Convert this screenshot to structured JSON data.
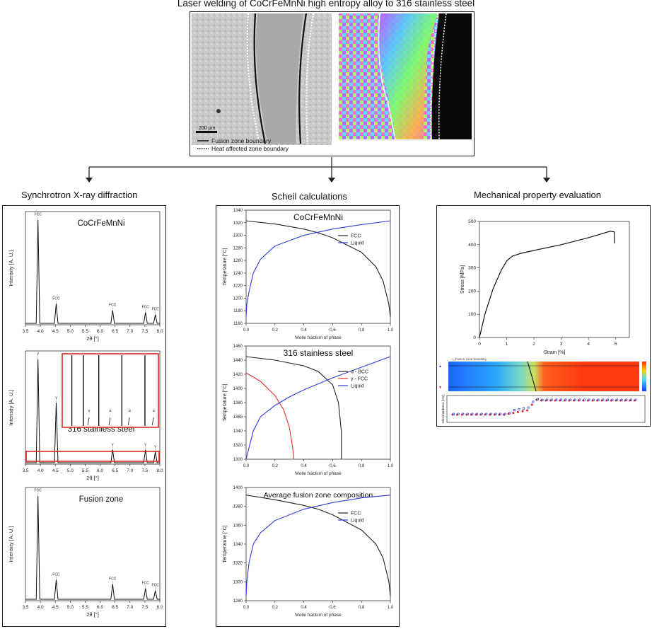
{
  "title": "Laser welding of CoCrFeMnNi high entropy alloy to 316 stainless steel",
  "micro": {
    "scale_label": "200 µm",
    "legend": [
      "Fusion zone boundary",
      "Heat affected zone boundary"
    ]
  },
  "sections": {
    "xrd": "Synchrotron X-ray diffraction",
    "scheil": "Scheil calculations",
    "mech": "Mechanical property evaluation"
  },
  "xrd": {
    "xlabel": "2θ [°]",
    "ylabel": "Intensity [A. U.]",
    "xticks": [
      "3.5",
      "4.0",
      "4.5",
      "5.0",
      "5.5",
      "6.0",
      "6.5",
      "7.0",
      "7.5",
      "8.0"
    ],
    "panels": [
      {
        "title": "CoCrFeMnNi",
        "peaks": [
          {
            "x": 3.92,
            "h": 0.95,
            "label": "FCC"
          },
          {
            "x": 4.53,
            "h": 0.18,
            "label": "FCC"
          },
          {
            "x": 6.42,
            "h": 0.12,
            "label": "FCC"
          },
          {
            "x": 7.52,
            "h": 0.1,
            "label": "FCC"
          },
          {
            "x": 7.85,
            "h": 0.08,
            "label": "FCC"
          }
        ]
      },
      {
        "title": "316 stainless steel",
        "peaks": [
          {
            "x": 3.92,
            "h": 0.95,
            "label": "γ"
          },
          {
            "x": 4.53,
            "h": 0.55,
            "label": "γ"
          },
          {
            "x": 6.42,
            "h": 0.12,
            "label": "γ"
          },
          {
            "x": 7.52,
            "h": 0.12,
            "label": "γ"
          },
          {
            "x": 7.85,
            "h": 0.1,
            "label": "γ"
          }
        ]
      },
      {
        "title": "Fusion zone",
        "peaks": [
          {
            "x": 3.92,
            "h": 0.95,
            "label": "FCC"
          },
          {
            "x": 4.53,
            "h": 0.18,
            "label": "FCC"
          },
          {
            "x": 6.42,
            "h": 0.14,
            "label": "FCC"
          },
          {
            "x": 7.52,
            "h": 0.1,
            "label": "FCC"
          },
          {
            "x": 7.85,
            "h": 0.08,
            "label": "FCC"
          }
        ]
      }
    ],
    "inset_labels": [
      "γ",
      "α",
      "α",
      "α"
    ]
  },
  "scheil": {
    "xlabel": "Molle fraction of phase",
    "ylabel": "Temperature [°C]",
    "xticks": [
      "0.0",
      "0.2",
      "0.4",
      "0.6",
      "0.8",
      "1.0"
    ],
    "panels": [
      {
        "title": "CoCrFeMnNi",
        "yticks": [
          "1160",
          "1180",
          "1200",
          "1220",
          "1240",
          "1260",
          "1280",
          "1300",
          "1320",
          "1340"
        ],
        "ylim": [
          1160,
          1340
        ],
        "legend": [
          "FCC",
          "Liquid"
        ]
      },
      {
        "title": "316 stainless steel",
        "yticks": [
          "1300",
          "1320",
          "1340",
          "1360",
          "1380",
          "1400",
          "1420",
          "1440",
          "1460"
        ],
        "ylim": [
          1300,
          1460
        ],
        "legend": [
          "α - BCC",
          "γ - FCC",
          "Liquid"
        ]
      },
      {
        "title": "Average fusion zone composition",
        "yticks": [
          "1280",
          "1300",
          "1320",
          "1340",
          "1360",
          "1380",
          "1400"
        ],
        "ylim": [
          1280,
          1400
        ],
        "legend": [
          "FCC",
          "Liquid"
        ]
      }
    ]
  },
  "tensile": {
    "xlabel": "Strain [%]",
    "ylabel": "Stress [MPa]",
    "xticks": [
      "0",
      "1",
      "2",
      "3",
      "4",
      "5"
    ],
    "yticks": [
      "0",
      "100",
      "200",
      "300",
      "400",
      "500"
    ]
  },
  "hardness": {
    "legend_top": "— Fusion zone boundary",
    "ylabel": "Microhardness [HV]"
  },
  "colors": {
    "fcc": "#222222",
    "liquid": "#2a3ddb",
    "gamma": "#e53030",
    "highlight": "#d92626"
  },
  "chart_data": [
    {
      "type": "line",
      "title": "CoCrFeMnNi",
      "xlabel": "Molle fraction of phase",
      "ylabel": "Temperature [°C]",
      "xlim": [
        0,
        1
      ],
      "ylim": [
        1160,
        1340
      ],
      "series": [
        {
          "name": "FCC",
          "x": [
            0,
            0.2,
            0.4,
            0.5,
            0.6,
            0.8,
            0.9,
            0.95,
            0.99,
            1.0
          ],
          "y": [
            1323,
            1318,
            1310,
            1304,
            1296,
            1273,
            1250,
            1227,
            1190,
            1170
          ]
        },
        {
          "name": "Liquid",
          "x": [
            0,
            0.005,
            0.02,
            0.05,
            0.1,
            0.2,
            0.4,
            0.6,
            0.8,
            1.0
          ],
          "y": [
            1170,
            1190,
            1210,
            1240,
            1262,
            1283,
            1300,
            1310,
            1317,
            1323
          ]
        }
      ]
    },
    {
      "type": "line",
      "title": "316 stainless steel",
      "xlabel": "Molle fraction of phase",
      "ylabel": "Temperature [°C]",
      "xlim": [
        0,
        1
      ],
      "ylim": [
        1300,
        1460
      ],
      "series": [
        {
          "name": "α - BCC",
          "x": [
            0,
            0.2,
            0.4,
            0.5,
            0.6,
            0.64,
            0.66,
            0.66
          ],
          "y": [
            1445,
            1440,
            1432,
            1424,
            1405,
            1380,
            1340,
            1300
          ]
        },
        {
          "name": "γ - FCC",
          "x": [
            0,
            0.1,
            0.2,
            0.26,
            0.3,
            0.32,
            0.33,
            0.33
          ],
          "y": [
            1422,
            1410,
            1390,
            1370,
            1345,
            1320,
            1305,
            1300
          ]
        },
        {
          "name": "Liquid",
          "x": [
            0,
            0.05,
            0.1,
            0.2,
            0.3,
            0.4,
            0.6,
            0.8,
            1.0
          ],
          "y": [
            1300,
            1340,
            1360,
            1376,
            1388,
            1398,
            1415,
            1430,
            1445
          ]
        }
      ]
    },
    {
      "type": "line",
      "title": "Average fusion zone composition",
      "xlabel": "Molle fraction of phase",
      "ylabel": "Temperature [°C]",
      "xlim": [
        0,
        1
      ],
      "ylim": [
        1280,
        1400
      ],
      "series": [
        {
          "name": "FCC",
          "x": [
            0,
            0.2,
            0.4,
            0.5,
            0.6,
            0.8,
            0.9,
            0.95,
            0.99,
            1.0
          ],
          "y": [
            1392,
            1387,
            1381,
            1377,
            1371,
            1355,
            1340,
            1325,
            1300,
            1285
          ]
        },
        {
          "name": "Liquid",
          "x": [
            0,
            0.005,
            0.02,
            0.05,
            0.1,
            0.2,
            0.4,
            0.6,
            0.8,
            1.0
          ],
          "y": [
            1285,
            1300,
            1320,
            1340,
            1352,
            1365,
            1377,
            1384,
            1389,
            1392
          ]
        }
      ]
    },
    {
      "type": "line",
      "title": "",
      "xlabel": "Strain [%]",
      "ylabel": "Stress [MPa]",
      "xlim": [
        0,
        5.5
      ],
      "ylim": [
        0,
        500
      ],
      "series": [
        {
          "x": [
            0,
            0.2,
            0.5,
            0.8,
            1.0,
            1.2,
            1.5,
            2,
            3,
            4,
            4.8,
            4.95,
            4.95
          ],
          "y": [
            0,
            100,
            210,
            290,
            330,
            350,
            362,
            375,
            400,
            430,
            458,
            455,
            405
          ]
        }
      ]
    }
  ]
}
